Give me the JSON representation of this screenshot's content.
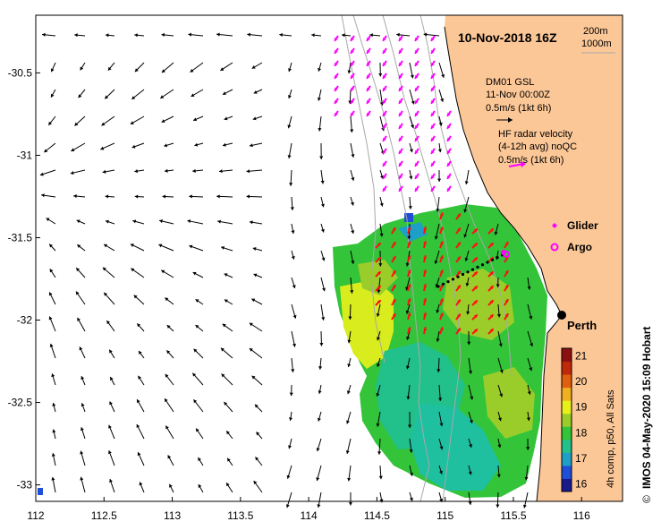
{
  "map": {
    "date_title": "10-Nov-2018 16Z",
    "depth_contours": [
      "200m",
      "1000m"
    ],
    "timestamp": "IMOS 04-May-2020 15:09 Hobart",
    "copyright_symbol": "©",
    "lon_ticks": [
      "112",
      "112.5",
      "113",
      "113.5",
      "114",
      "114.5",
      "115",
      "115.5",
      "116"
    ],
    "lat_ticks": [
      "-30.5",
      "-31",
      "-31.5",
      "-32",
      "-32.5",
      "-33"
    ],
    "lon_range": [
      112,
      116.3
    ],
    "lat_range": [
      -33.1,
      -30.15
    ],
    "model_legend": {
      "line1": "DM01 GSL",
      "line2": "11-Nov 00:00Z",
      "line3": "0.5m/s (1kt 6h)",
      "arrow_color": "#000000"
    },
    "radar_legend": {
      "line1": "HF radar velocity",
      "line2": "(4-12h avg) noQC",
      "line3": "0.5m/s (1kt 6h)",
      "arrow_color": "#ff00ff"
    },
    "markers": {
      "glider_label": "Glider",
      "argo_label": "Argo",
      "city_label": "Perth",
      "marker_color": "#ff00ff"
    },
    "colorbar": {
      "label": "4h comp, p50, All Sats",
      "ticks": [
        "21",
        "20",
        "19",
        "18",
        "17",
        "16"
      ],
      "range": [
        15.7,
        21.3
      ],
      "colors": [
        "#1a1a8c",
        "#1f4fd6",
        "#1e9fc8",
        "#22c08a",
        "#33c43a",
        "#9acd2a",
        "#e8f01a",
        "#f0b020",
        "#e06010",
        "#c02a0a",
        "#8c1010"
      ]
    },
    "land_color": "#fcc797",
    "coast_color": "#000000"
  }
}
